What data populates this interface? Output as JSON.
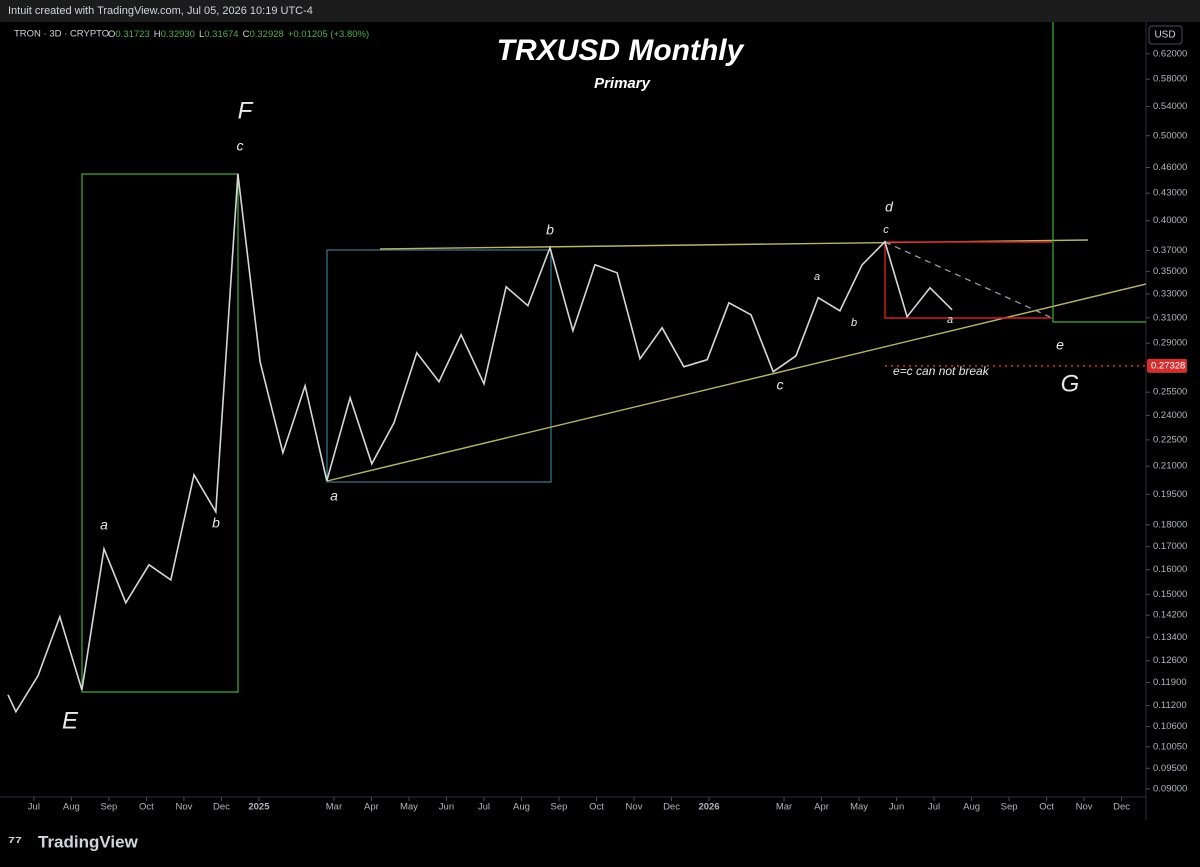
{
  "header": {
    "text": "Intuit created with TradingView.com, Jul 05, 2026 10:19 UTC-4"
  },
  "legend": {
    "symbol": "TRON · 3D · CRYPTO",
    "ohlc": [
      {
        "key": "O",
        "text": "0.31723"
      },
      {
        "key": "H",
        "text": "0.32930"
      },
      {
        "key": "L",
        "text": "0.31674"
      },
      {
        "key": "C",
        "text": "0.32928"
      }
    ],
    "change": "+0.01205 (+3.80%)"
  },
  "currency": "USD",
  "footer": {
    "brand": "TradingView"
  },
  "chart_data": {
    "type": "line",
    "title": "TRXUSD Monthly",
    "subtitle": "Primary",
    "log_scale": true,
    "grid": false,
    "color": "#d6d6d6",
    "x": [
      -0.69,
      -0.48,
      0.11,
      0.69,
      1.28,
      1.87,
      2.45,
      3.07,
      3.65,
      4.27,
      4.85,
      5.44,
      6.03,
      6.64,
      7.23,
      7.81,
      8.43,
      9.01,
      9.6,
      10.21,
      10.8,
      11.39,
      12,
      12.59,
      13.17,
      13.76,
      14.37,
      14.96,
      15.55,
      16.16,
      16.75,
      17.33,
      17.95,
      18.53,
      19.12,
      19.71,
      20.32,
      20.91,
      21.49,
      22.08,
      22.69,
      23.28,
      23.89,
      24.48
    ],
    "values": [
      0.1152,
      0.1102,
      0.1211,
      0.1414,
      0.1167,
      0.169,
      0.1467,
      0.1621,
      0.1558,
      0.2053,
      0.1863,
      0.4525,
      0.2762,
      0.2175,
      0.2593,
      0.2021,
      0.2513,
      0.2113,
      0.2353,
      0.2828,
      0.2621,
      0.2965,
      0.2607,
      0.3363,
      0.32,
      0.3726,
      0.2996,
      0.3563,
      0.3489,
      0.2784,
      0.302,
      0.2726,
      0.2777,
      0.3225,
      0.3125,
      0.2691,
      0.2806,
      0.3268,
      0.3158,
      0.3563,
      0.3785,
      0.3109,
      0.3354,
      0.3166
    ],
    "xlim": [
      -0.69,
      29.57
    ],
    "xticks": [
      {
        "value": 0,
        "label": "Jul"
      },
      {
        "value": 1,
        "label": "Aug"
      },
      {
        "value": 2,
        "label": "Sep"
      },
      {
        "value": 3,
        "label": "Oct"
      },
      {
        "value": 4,
        "label": "Nov"
      },
      {
        "value": 5,
        "label": "Dec"
      },
      {
        "value": 6,
        "label": "2025"
      },
      {
        "value": 8,
        "label": "Mar"
      },
      {
        "value": 9,
        "label": "Apr"
      },
      {
        "value": 10,
        "label": "May"
      },
      {
        "value": 11,
        "label": "Jun"
      },
      {
        "value": 12,
        "label": "Jul"
      },
      {
        "value": 13,
        "label": "Aug"
      },
      {
        "value": 14,
        "label": "Sep"
      },
      {
        "value": 15,
        "label": "Oct"
      },
      {
        "value": 16,
        "label": "Nov"
      },
      {
        "value": 17,
        "label": "Dec"
      },
      {
        "value": 18,
        "label": "2026"
      },
      {
        "value": 20,
        "label": "Mar"
      },
      {
        "value": 21,
        "label": "Apr"
      },
      {
        "value": 22,
        "label": "May"
      },
      {
        "value": 23,
        "label": "Jun"
      },
      {
        "value": 24,
        "label": "Jul"
      },
      {
        "value": 25,
        "label": "Aug"
      },
      {
        "value": 26,
        "label": "Sep"
      },
      {
        "value": 27,
        "label": "Oct"
      },
      {
        "value": 28,
        "label": "Nov"
      },
      {
        "value": 29,
        "label": "Dec"
      }
    ],
    "ylim": [
      0.0881,
      0.674
    ],
    "yticks": [
      {
        "value": 0.62,
        "label": "0.62000"
      },
      {
        "value": 0.58,
        "label": "0.58000"
      },
      {
        "value": 0.54,
        "label": "0.54000"
      },
      {
        "value": 0.5,
        "label": "0.50000"
      },
      {
        "value": 0.46,
        "label": "0.46000"
      },
      {
        "value": 0.43,
        "label": "0.43000"
      },
      {
        "value": 0.4,
        "label": "0.40000"
      },
      {
        "value": 0.37,
        "label": "0.37000"
      },
      {
        "value": 0.35,
        "label": "0.35000"
      },
      {
        "value": 0.33,
        "label": "0.33000"
      },
      {
        "value": 0.31,
        "label": "0.31000"
      },
      {
        "value": 0.29,
        "label": "0.29000"
      },
      {
        "value": 0.255,
        "label": "0.25500"
      },
      {
        "value": 0.24,
        "label": "0.24000"
      },
      {
        "value": 0.225,
        "label": "0.22500"
      },
      {
        "value": 0.21,
        "label": "0.21000"
      },
      {
        "value": 0.195,
        "label": "0.19500"
      },
      {
        "value": 0.18,
        "label": "0.18000"
      },
      {
        "value": 0.17,
        "label": "0.17000"
      },
      {
        "value": 0.16,
        "label": "0.16000"
      },
      {
        "value": 0.15,
        "label": "0.15000"
      },
      {
        "value": 0.142,
        "label": "0.14200"
      },
      {
        "value": 0.134,
        "label": "0.13400"
      },
      {
        "value": 0.126,
        "label": "0.12600"
      },
      {
        "value": 0.119,
        "label": "0.11900"
      },
      {
        "value": 0.112,
        "label": "0.11200"
      },
      {
        "value": 0.106,
        "label": "0.10600"
      },
      {
        "value": 0.1005,
        "label": "0.10050"
      },
      {
        "value": 0.095,
        "label": "0.09500"
      },
      {
        "value": 0.09,
        "label": "0.09000"
      }
    ],
    "hline": 0.27328,
    "annotations": [
      "F",
      "c",
      "a",
      "b",
      "E",
      "a",
      "b",
      "c",
      "a",
      "b",
      "d",
      "c",
      "a",
      "e",
      "G",
      "e=c can not break"
    ]
  }
}
